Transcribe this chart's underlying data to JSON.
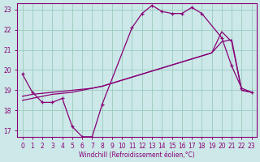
{
  "xlabel": "Windchill (Refroidissement éolien,°C)",
  "bg_color": "#cce8e8",
  "grid_color": "#99ccbb",
  "line_color": "#880077",
  "xmin": 0,
  "xmax": 23,
  "ymin": 17,
  "ymax": 23,
  "yticks": [
    17,
    18,
    19,
    20,
    21,
    22,
    23
  ],
  "xticks": [
    0,
    1,
    2,
    3,
    4,
    5,
    6,
    7,
    8,
    9,
    10,
    11,
    12,
    13,
    14,
    15,
    16,
    17,
    18,
    19,
    20,
    21,
    22,
    23
  ],
  "line1_x": [
    0,
    1,
    2,
    3,
    4,
    5,
    6,
    7,
    8,
    11,
    12,
    13,
    14,
    15,
    16,
    17,
    18,
    20,
    21,
    22,
    23
  ],
  "line1_y": [
    19.8,
    18.9,
    18.4,
    18.4,
    18.6,
    17.2,
    16.7,
    16.7,
    18.3,
    22.1,
    22.8,
    23.2,
    22.9,
    22.8,
    22.8,
    23.1,
    22.8,
    21.6,
    20.2,
    19.1,
    18.9
  ],
  "line2_x": [
    0,
    1,
    2,
    3,
    4,
    5,
    6,
    7,
    8,
    9,
    10,
    11,
    12,
    13,
    14,
    15,
    16,
    17,
    18,
    19,
    20,
    21,
    22,
    23
  ],
  "line2_y": [
    18.5,
    18.6,
    18.7,
    18.8,
    18.85,
    18.9,
    19.0,
    19.1,
    19.2,
    19.35,
    19.5,
    19.65,
    19.8,
    19.95,
    20.1,
    20.25,
    20.4,
    20.55,
    20.7,
    20.85,
    21.9,
    21.4,
    19.0,
    18.9
  ],
  "line3_x": [
    0,
    1,
    2,
    3,
    4,
    5,
    6,
    7,
    8,
    9,
    10,
    11,
    12,
    13,
    14,
    15,
    16,
    17,
    18,
    19,
    20,
    21,
    22,
    23
  ],
  "line3_y": [
    18.7,
    18.8,
    18.85,
    18.9,
    18.95,
    19.0,
    19.05,
    19.1,
    19.2,
    19.35,
    19.5,
    19.65,
    19.8,
    19.95,
    20.1,
    20.25,
    20.4,
    20.55,
    20.7,
    20.85,
    21.4,
    21.5,
    19.0,
    18.9
  ]
}
